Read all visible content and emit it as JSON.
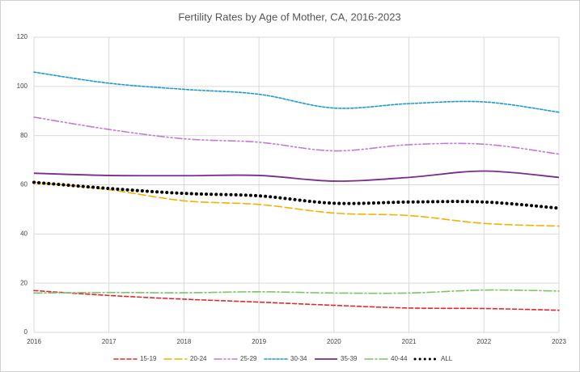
{
  "chart_data": {
    "type": "line",
    "title": "Fertility Rates by Age of Mother, CA, 2016-2023",
    "x": [
      2016,
      2017,
      2018,
      2019,
      2020,
      2021,
      2022,
      2023
    ],
    "xlim": [
      2016,
      2023
    ],
    "xticks": [
      2016,
      2017,
      2018,
      2019,
      2020,
      2021,
      2022,
      2023
    ],
    "ylim": [
      0,
      120
    ],
    "yticks": [
      0,
      20,
      40,
      60,
      80,
      100,
      120
    ],
    "grid": true,
    "legend": "bottom",
    "smooth": true,
    "series": [
      {
        "name": "15-19",
        "color": "#e8262a",
        "dash": "5 3",
        "width": 1.6,
        "values": [
          17,
          15,
          13.5,
          12.3,
          11,
          9.9,
          9.7,
          9
        ]
      },
      {
        "name": "20-24",
        "color": "#f2b200",
        "dash": "9 4",
        "width": 1.6,
        "values": [
          61,
          58,
          53.5,
          52,
          48.5,
          47.5,
          44.3,
          43.2
        ]
      },
      {
        "name": "25-29",
        "color": "#c37ad3",
        "dash": "9 3 2 3 2 3",
        "width": 1.6,
        "values": [
          87.5,
          82.5,
          78.7,
          77.3,
          73.8,
          76.3,
          76.5,
          72.5
        ]
      },
      {
        "name": "30-34",
        "color": "#1d9ad2",
        "dash": "3 2",
        "width": 1.6,
        "values": [
          105.8,
          101.3,
          98.8,
          96.8,
          91.2,
          93,
          93.7,
          89.5
        ]
      },
      {
        "name": "35-39",
        "color": "#7a2b8e",
        "dash": "none",
        "width": 1.8,
        "values": [
          64.7,
          63.8,
          63.7,
          63.8,
          61.5,
          63,
          65.6,
          63
        ]
      },
      {
        "name": "40-44",
        "color": "#7cc36a",
        "dash": "10 3 2 3",
        "width": 1.6,
        "values": [
          16,
          16.2,
          16.1,
          16.5,
          16,
          16,
          17.2,
          16.8
        ]
      },
      {
        "name": "ALL",
        "color": "#000000",
        "dash": "0.1 6",
        "width": 4,
        "values": [
          61,
          58.5,
          56.5,
          55.5,
          52.5,
          53,
          53,
          50.5
        ]
      }
    ]
  }
}
